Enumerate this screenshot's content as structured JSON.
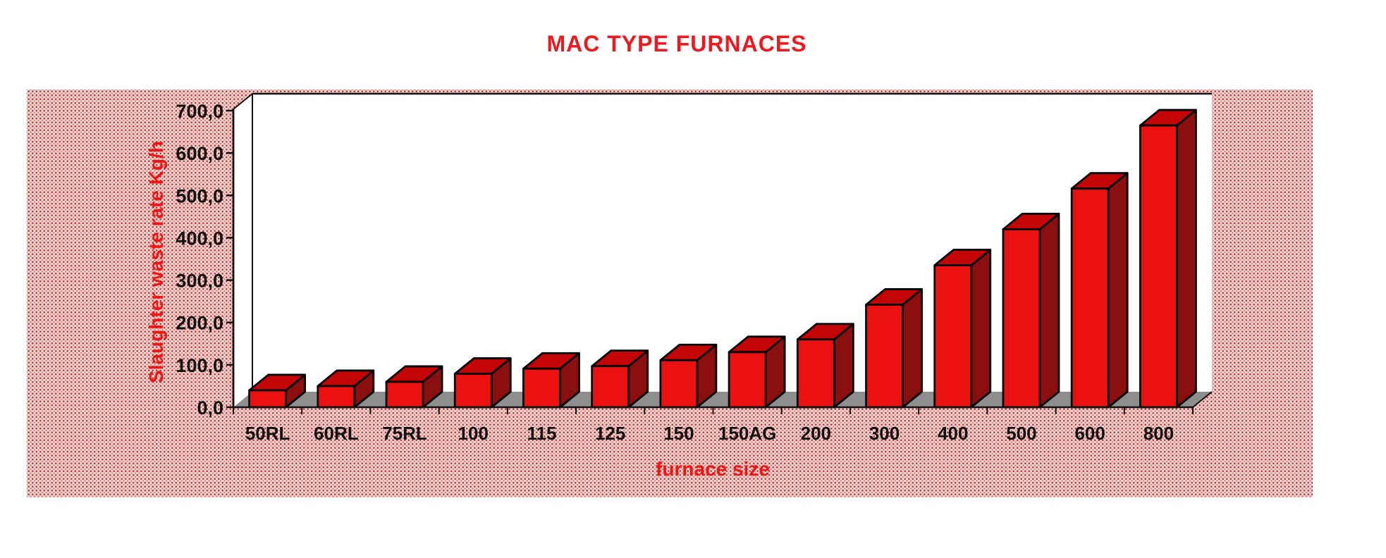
{
  "title": "MAC TYPE FURNACES",
  "chart_data": {
    "type": "bar",
    "title": "MAC TYPE FURNACES",
    "xlabel": "furnace size",
    "ylabel": "Slaughter waste rate Kg/h",
    "categories": [
      "50RL",
      "60RL",
      "75RL",
      "100",
      "115",
      "125",
      "150",
      "150AG",
      "200",
      "300",
      "400",
      "500",
      "600",
      "800"
    ],
    "values": [
      40,
      50,
      60,
      79,
      91,
      97,
      111,
      130,
      160,
      242,
      335,
      420,
      516,
      665
    ],
    "ylim": [
      0,
      700
    ],
    "ytick_step": 100,
    "ytick_labels": [
      "0,0",
      "100,0",
      "200,0",
      "300,0",
      "400,0",
      "500,0",
      "600,0",
      "700,0"
    ],
    "grid": false,
    "legend": "none",
    "style": "3d-column",
    "colors": {
      "bar_front": "#ec1111",
      "bar_top": "#c40505",
      "bar_side": "#8c0f0f",
      "bar_outline": "#000000",
      "floor": "#8e8e8e",
      "axis": "#111111",
      "title_red": "#ea1a20",
      "label_red": "#ee1515",
      "tick_text": "#111111",
      "panel_bg": "#f0ded4",
      "panel_dot_dark": "#bf3a42",
      "panel_dot_light": "#e0878c",
      "plot_bg": "#ffffff"
    }
  }
}
